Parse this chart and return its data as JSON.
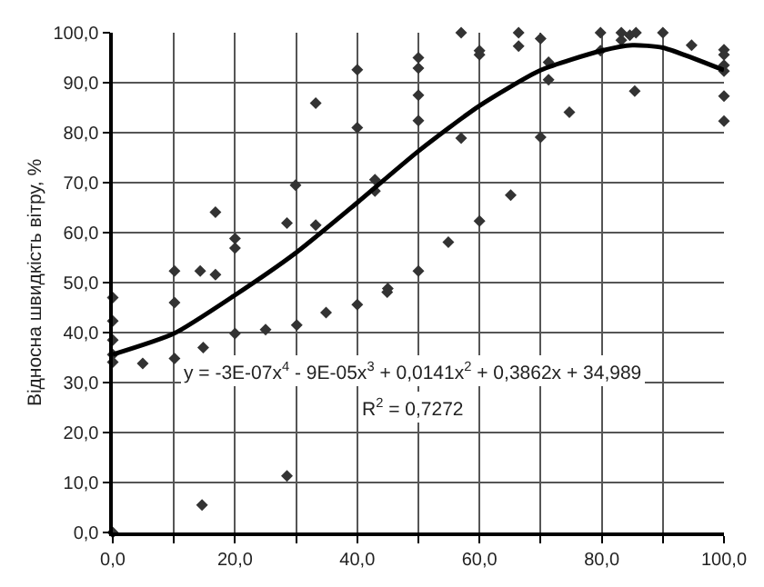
{
  "chart_data": {
    "type": "scatter",
    "ylabel": "Відносна швидкість вітру, %",
    "xlim": [
      0,
      100
    ],
    "ylim": [
      0,
      100
    ],
    "xticks": [
      {
        "value": 0,
        "label": "0,0"
      },
      {
        "value": 10,
        "label": null
      },
      {
        "value": 20,
        "label": "20,0"
      },
      {
        "value": 30,
        "label": null
      },
      {
        "value": 40,
        "label": "40,0"
      },
      {
        "value": 50,
        "label": null
      },
      {
        "value": 60,
        "label": "60,0"
      },
      {
        "value": 70,
        "label": null
      },
      {
        "value": 80,
        "label": "80,0"
      },
      {
        "value": 90,
        "label": null
      },
      {
        "value": 100,
        "label": "100,0"
      }
    ],
    "yticks": [
      {
        "value": 0,
        "label": "0,0"
      },
      {
        "value": 10,
        "label": "10,0"
      },
      {
        "value": 20,
        "label": "20,0"
      },
      {
        "value": 30,
        "label": "30,0"
      },
      {
        "value": 40,
        "label": "40,0"
      },
      {
        "value": 50,
        "label": "50,0"
      },
      {
        "value": 60,
        "label": "60,0"
      },
      {
        "value": 70,
        "label": "70,0"
      },
      {
        "value": 80,
        "label": "80,0"
      },
      {
        "value": 90,
        "label": "90,0"
      },
      {
        "value": 100,
        "label": "100,0"
      }
    ],
    "grid": true,
    "series": [
      {
        "marker": "diamond",
        "color": "#333333",
        "x": [
          0,
          0,
          0,
          0,
          0,
          0,
          4.9,
          10.1,
          10.1,
          10.1,
          14.3,
          14.8,
          14.6,
          16.8,
          16.8,
          20,
          20,
          20,
          25,
          28.5,
          28.5,
          29.9,
          30.1,
          33.2,
          33.2,
          34.9,
          40,
          40,
          40,
          42.9,
          42.9,
          44.9,
          45,
          50,
          50,
          50,
          50,
          50,
          54.9,
          57,
          57,
          60,
          60,
          60,
          65.1,
          66.4,
          66.4,
          70,
          70,
          71.3,
          71.3,
          74.7,
          79.8,
          79.8,
          83.2,
          83.2,
          84.6,
          85.6,
          85.4,
          90,
          94.7,
          100,
          100,
          100,
          100,
          100,
          100
        ],
        "values": [
          47,
          42.3,
          38.5,
          35.6,
          34.1,
          0,
          33.8,
          52.3,
          46,
          34.8,
          52.3,
          37,
          5.5,
          51.6,
          64.1,
          58.8,
          56.9,
          39.8,
          40.6,
          61.9,
          11.3,
          69.5,
          41.5,
          85.9,
          61.5,
          44,
          92.6,
          81,
          45.6,
          70.6,
          68.3,
          48.1,
          48.8,
          95,
          92.9,
          87.5,
          82.4,
          52.3,
          58.1,
          100,
          78.9,
          96.4,
          95.6,
          62.3,
          67.5,
          100,
          97.3,
          98.8,
          79.1,
          94.1,
          90.6,
          84.1,
          100,
          96.4,
          100,
          98.5,
          99.5,
          100,
          88.3,
          100,
          97.5,
          96.6,
          95.6,
          93.5,
          92.3,
          87.3,
          82.3
        ]
      },
      {
        "type": "line",
        "marker": "none",
        "line_style": "solid",
        "color": "#000000",
        "x": [
          0,
          10,
          20,
          30,
          40,
          50,
          60,
          70,
          80,
          85,
          90,
          100
        ],
        "values": [
          35.6,
          39.8,
          47.5,
          56,
          66,
          76.3,
          85.4,
          92.5,
          96.4,
          97.5,
          97,
          92.5
        ]
      }
    ],
    "annotations": [
      "y = -3E-07x$^{4}$ - 9E-05x$^{3}$ + 0,0141x$^{2}$ + 0,3862x + 34,989",
      "R$^{2}$ = 0,7272"
    ]
  }
}
